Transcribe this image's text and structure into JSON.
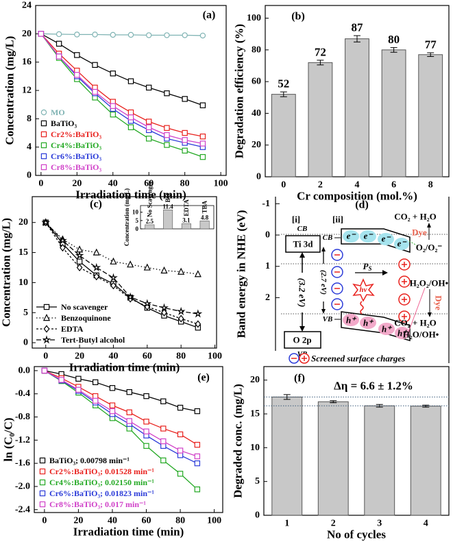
{
  "chart_data": [
    {
      "type": "line",
      "panel_label": "(a)",
      "xlabel": "Irradiation time (min)",
      "ylabel": "Concentration (mg/L)",
      "x": [
        0,
        10,
        20,
        30,
        40,
        50,
        60,
        70,
        80,
        90
      ],
      "xlim": [
        -3,
        103
      ],
      "xticks": [
        0,
        20,
        40,
        60,
        80,
        100
      ],
      "ylim": [
        0,
        24
      ],
      "yticks": [
        0,
        4,
        8,
        12,
        16,
        20,
        24
      ],
      "legend": "lower left",
      "legend_text_colored": true,
      "series": [
        {
          "name": "MO",
          "color": "#7fb3b3",
          "marker": "circle",
          "values": [
            20,
            19.95,
            19.9,
            19.9,
            19.85,
            19.85,
            19.8,
            19.8,
            19.8,
            19.75
          ]
        },
        {
          "name": "BaTiO₃",
          "color": "#000000",
          "marker": "square",
          "values": [
            20,
            18.6,
            17.0,
            15.6,
            14.4,
            13.3,
            12.4,
            11.6,
            10.8,
            9.9
          ]
        },
        {
          "name": "Cr2%:BaTiO₃",
          "color": "#e8201c",
          "marker": "square",
          "values": [
            20,
            17.2,
            14.8,
            12.4,
            10.4,
            8.9,
            7.6,
            6.7,
            6.0,
            5.5
          ]
        },
        {
          "name": "Cr4%:BaTiO₃",
          "color": "#22a822",
          "marker": "square",
          "values": [
            20,
            16.6,
            13.6,
            11.0,
            8.6,
            6.8,
            5.2,
            4.3,
            3.5,
            2.6
          ]
        },
        {
          "name": "Cr6%:BaTiO₃",
          "color": "#2a3ad8",
          "marker": "square",
          "values": [
            20,
            16.8,
            14.0,
            11.6,
            9.4,
            7.7,
            6.4,
            5.2,
            4.6,
            4.0
          ]
        },
        {
          "name": "Cr8%:BaTiO₃",
          "color": "#d040c8",
          "marker": "square",
          "values": [
            20,
            16.8,
            14.2,
            11.8,
            9.8,
            8.2,
            6.8,
            5.7,
            5.0,
            4.5
          ]
        }
      ]
    },
    {
      "type": "bar",
      "panel_label": "(b)",
      "xlabel": "Cr composition (mol.%)",
      "ylabel": "Degradation efficiency (%)",
      "categories": [
        "0",
        "2",
        "4",
        "6",
        "8"
      ],
      "values": [
        52,
        72,
        87,
        80,
        77
      ],
      "errors": [
        1.5,
        1.5,
        2,
        1.5,
        1.2
      ],
      "show_values": true,
      "color": "#c8c8c8",
      "ylim": [
        0,
        108
      ],
      "yticks": [
        0,
        20,
        40,
        60,
        80,
        100
      ]
    },
    {
      "type": "line",
      "panel_label": "(c)",
      "xlabel": "Irradiation time (min)",
      "ylabel": "Concentration (mg/L)",
      "x": [
        0,
        10,
        20,
        30,
        40,
        50,
        60,
        70,
        80,
        90
      ],
      "xlim": [
        -8,
        101
      ],
      "xticks": [
        0,
        20,
        40,
        60,
        80,
        100
      ],
      "ylim": [
        -0.9,
        24.3
      ],
      "yticks": [
        0,
        5,
        10,
        15,
        20
      ],
      "legend": "lower left",
      "legend_text_colored": false,
      "series": [
        {
          "name": "No scavenger",
          "color": "#000000",
          "marker": "square",
          "dash": "solid",
          "values": [
            20,
            16.5,
            13.5,
            11.2,
            9.8,
            7.5,
            5.8,
            4.5,
            3.5,
            2.5
          ]
        },
        {
          "name": "Benzoquinone",
          "color": "#000000",
          "marker": "triangle",
          "dash": "dotted",
          "values": [
            20,
            17.2,
            15.5,
            15,
            13.5,
            13,
            12.5,
            12,
            11.8,
            11.4
          ]
        },
        {
          "name": "EDTA",
          "color": "#000000",
          "marker": "diamond",
          "dash": "short-dash",
          "values": [
            20,
            15.8,
            12.5,
            11,
            9.5,
            7.3,
            6,
            5,
            4,
            3.1
          ]
        },
        {
          "name": "Tert-Butyl alcohol",
          "color": "#000000",
          "marker": "star",
          "dash": "dashed",
          "values": [
            20,
            17,
            14.5,
            12.5,
            10.8,
            7.6,
            6.5,
            5.8,
            5.2,
            4.8
          ]
        }
      ],
      "inset": {
        "type": "bar",
        "ylabel": "Concentration (mg/L)",
        "categories": [
          "No Scavenger",
          "BQ",
          "EDTA",
          "TBA"
        ],
        "values": [
          2.5,
          11.4,
          3.1,
          4.8
        ],
        "show_values": true,
        "color": "#c8c8c8",
        "ylim": [
          0,
          14
        ],
        "yticks": [
          0,
          5,
          10
        ]
      }
    },
    {
      "type": "line",
      "panel_label": "(e)",
      "xlabel": "Irradiation time (min)",
      "ylabel": "ln (C₀/C)",
      "x": [
        0,
        10,
        20,
        30,
        40,
        50,
        60,
        70,
        80,
        90
      ],
      "xlim": [
        -6,
        105
      ],
      "xticks": [
        0,
        20,
        40,
        60,
        80,
        100
      ],
      "ylim": [
        -2.45,
        0.07
      ],
      "yticks": [
        {
          "value": 0,
          "label": "0.0"
        },
        {
          "value": -0.4,
          "label": "-0.4"
        },
        {
          "value": -0.8,
          "label": "-0.8"
        },
        {
          "value": -1.2,
          "label": "-1.2"
        },
        {
          "value": -1.6,
          "label": "-1.6"
        },
        {
          "value": -2.0,
          "label": "-2.0"
        },
        {
          "value": -2.4,
          "label": "-2.4"
        }
      ],
      "legend": "lower left",
      "legend_text_colored": true,
      "series": [
        {
          "name": "BaTiO₃; 0.00798 min⁻¹",
          "color": "#000000",
          "marker": "square",
          "values": [
            0,
            -0.06,
            -0.14,
            -0.2,
            -0.3,
            -0.37,
            -0.44,
            -0.53,
            -0.64,
            -0.7
          ]
        },
        {
          "name": "Cr2%:BaTiO₃; 0.01528 min⁻¹",
          "color": "#e8201c",
          "marker": "square",
          "values": [
            0,
            -0.13,
            -0.28,
            -0.44,
            -0.6,
            -0.72,
            -0.88,
            -1.0,
            -1.1,
            -1.28
          ]
        },
        {
          "name": "Cr4%:BaTiO₃; 0.02150 min⁻¹",
          "color": "#22a822",
          "marker": "square",
          "values": [
            0,
            -0.18,
            -0.38,
            -0.6,
            -0.82,
            -1.0,
            -1.3,
            -1.55,
            -1.78,
            -2.05
          ]
        },
        {
          "name": "Cr6%:BaTiO₃; 0.01823 min⁻¹",
          "color": "#2a3ad8",
          "marker": "square",
          "values": [
            0,
            -0.17,
            -0.35,
            -0.55,
            -0.75,
            -0.92,
            -1.12,
            -1.3,
            -1.46,
            -1.6
          ]
        },
        {
          "name": "Cr8%:BaTiO₃; 0.017 min⁻¹",
          "color": "#d040c8",
          "marker": "square",
          "values": [
            0,
            -0.16,
            -0.33,
            -0.52,
            -0.7,
            -0.87,
            -1.05,
            -1.22,
            -1.38,
            -1.48
          ]
        }
      ]
    },
    {
      "type": "bar",
      "panel_label": "(f)",
      "xlabel": "No of cycles",
      "ylabel": "Degraded conc. (mg/L)",
      "categories": [
        "1",
        "2",
        "3",
        "4"
      ],
      "values": [
        17.5,
        16.8,
        16.2,
        16.15
      ],
      "errors": [
        0.35,
        0.15,
        0.2,
        0.15
      ],
      "show_values": false,
      "color": "#c8c8c8",
      "ylim": [
        0,
        22
      ],
      "yticks": [
        0,
        5,
        10,
        15,
        20
      ],
      "hlines": [
        17.5,
        16.2
      ],
      "annotation": "Δη = 6.6 ± 1.2%"
    }
  ],
  "diagram": {
    "panel_label": "(d)",
    "y_label": "Band energy in NHE (eV)",
    "yticks": [
      -1,
      0,
      1,
      2
    ],
    "bulk_label": "[i]",
    "surface_label": "[ii]",
    "cb": "CB",
    "cb_level": "Ti 3d",
    "bulk_gap": "(3.2 eV)",
    "vb_level": "O 2p",
    "vb": "VB",
    "surface_gap": "(2.7 eV)",
    "cb_surface": "CB",
    "vb_surface": "VB",
    "electrons": [
      "e⁻",
      "e⁻",
      "e⁻",
      "e⁻"
    ],
    "holes": [
      "h⁺",
      "h⁺",
      "h⁺",
      "h⁺"
    ],
    "ps": "P",
    "ps_sub": "S",
    "photon": "hν",
    "product_top": "CO₂ + H₂O",
    "dye_top": "Dye",
    "redox_top": "O₂/O₂⁻",
    "redox_mid": "H₂O₂/OH•",
    "dye_bottom": "Dye",
    "product_bottom": "CO₂ + H₂O",
    "redox_bottom": "H₂O/OH•",
    "legend": "Screened surface charges"
  }
}
